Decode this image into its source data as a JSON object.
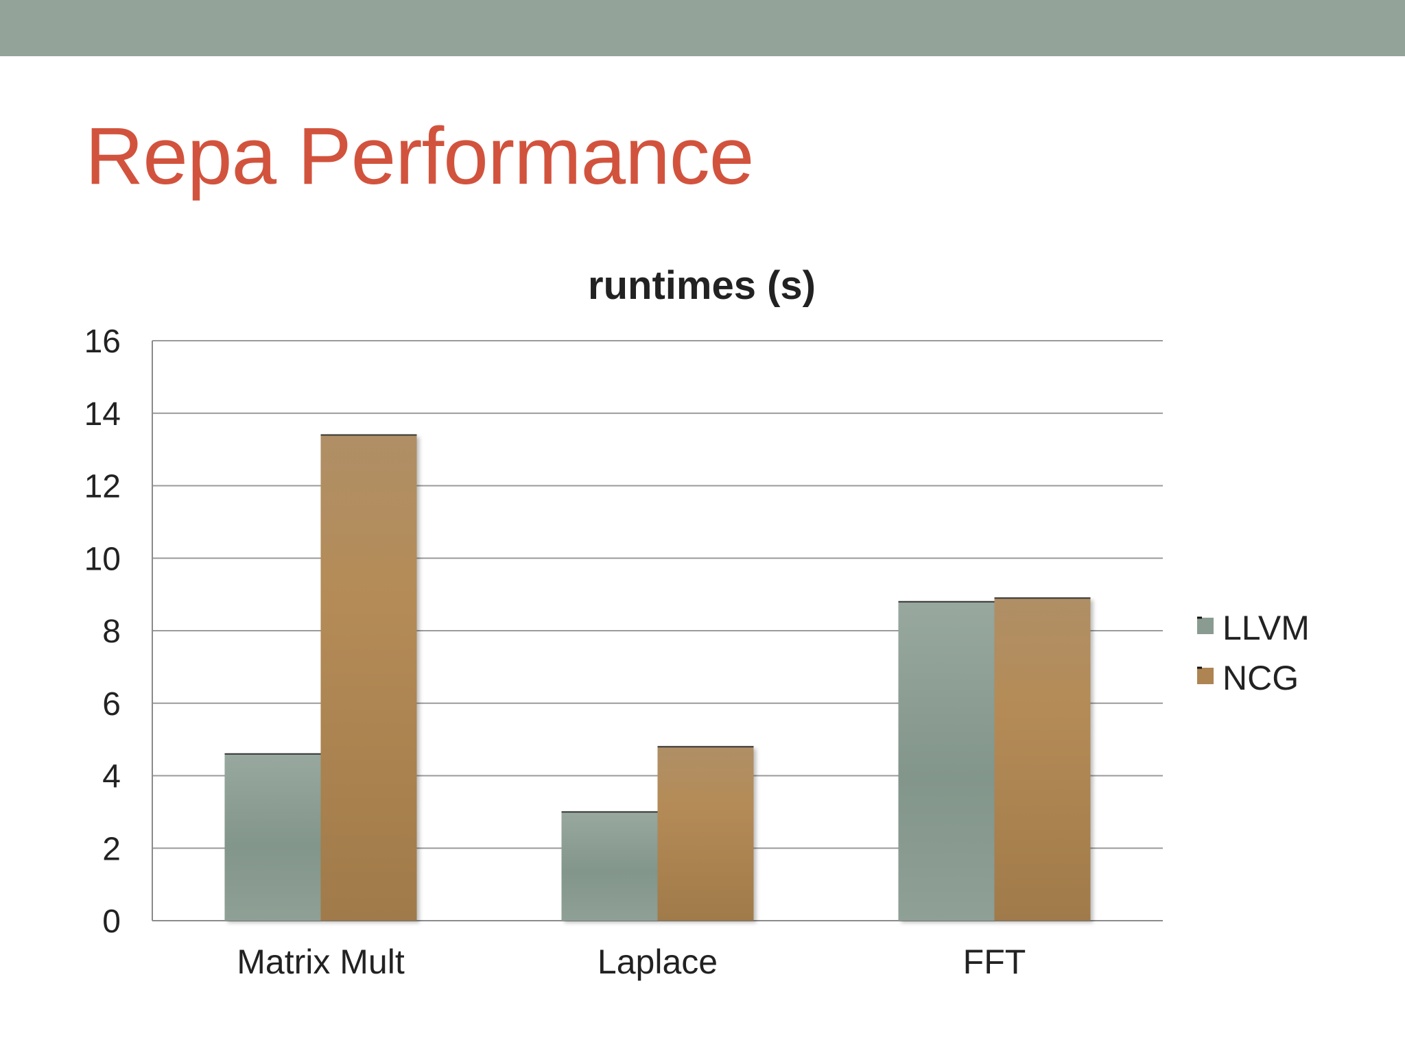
{
  "slide": {
    "title": "Repa Performance"
  },
  "colors": {
    "top_bar": "#93a399",
    "title": "#d2533d",
    "llvm": "#8a9c92",
    "ncg": "#ad8452",
    "grid": "#9a9a9a",
    "text": "#222222"
  },
  "chart_data": {
    "type": "bar",
    "title": "runtimes (s)",
    "xlabel": "",
    "ylabel": "",
    "categories": [
      "Matrix Mult",
      "Laplace",
      "FFT"
    ],
    "series": [
      {
        "name": "LLVM",
        "values": [
          4.6,
          3.0,
          8.8
        ]
      },
      {
        "name": "NCG",
        "values": [
          13.4,
          4.8,
          8.9
        ]
      }
    ],
    "ylim": [
      0,
      16
    ],
    "yticks": [
      0,
      2,
      4,
      6,
      8,
      10,
      12,
      14,
      16
    ],
    "grid": true,
    "legend": "right"
  }
}
